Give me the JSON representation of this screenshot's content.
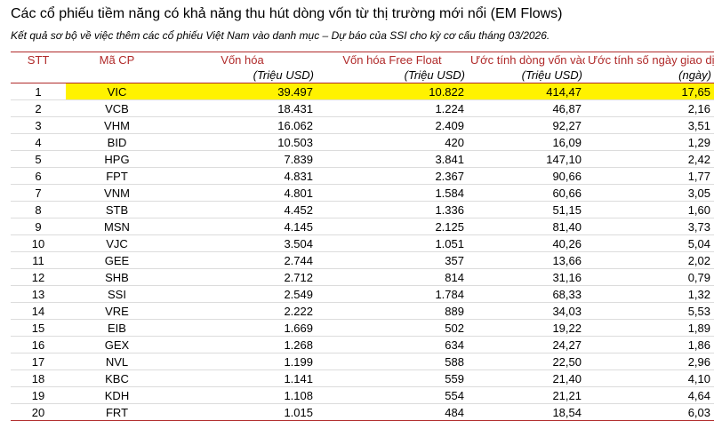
{
  "title": "Các cổ phiếu tiềm năng có khả năng thu hút dòng vốn từ thị trường mới nổi (EM Flows)",
  "subtitle": "Kết quả sơ bộ về việc thêm các cổ phiếu Việt Nam vào danh mục – Dự báo của SSI cho kỳ cơ cấu tháng 03/2026.",
  "highlight_color": "#fff200",
  "header_color": "#b02a2a",
  "columns": [
    {
      "label": "STT",
      "unit": ""
    },
    {
      "label": "Mã CP",
      "unit": ""
    },
    {
      "label": "Vốn hóa",
      "unit": "(Triệu USD)"
    },
    {
      "label": "Vốn hóa Free Float",
      "unit": "(Triệu USD)"
    },
    {
      "label": "Ước tính dòng vốn vào",
      "unit": "(Triệu USD)"
    },
    {
      "label": "Ước tính số ngày giao dịch",
      "unit": "(ngày)"
    }
  ],
  "rows": [
    {
      "stt": "1",
      "ma": "VIC",
      "von_hoa": "39.497",
      "free_float": "10.822",
      "dong_von": "414,47",
      "so_ngay": "17,65",
      "highlight": true
    },
    {
      "stt": "2",
      "ma": "VCB",
      "von_hoa": "18.431",
      "free_float": "1.224",
      "dong_von": "46,87",
      "so_ngay": "2,16"
    },
    {
      "stt": "3",
      "ma": "VHM",
      "von_hoa": "16.062",
      "free_float": "2.409",
      "dong_von": "92,27",
      "so_ngay": "3,51"
    },
    {
      "stt": "4",
      "ma": "BID",
      "von_hoa": "10.503",
      "free_float": "420",
      "dong_von": "16,09",
      "so_ngay": "1,29"
    },
    {
      "stt": "5",
      "ma": "HPG",
      "von_hoa": "7.839",
      "free_float": "3.841",
      "dong_von": "147,10",
      "so_ngay": "2,42"
    },
    {
      "stt": "6",
      "ma": "FPT",
      "von_hoa": "4.831",
      "free_float": "2.367",
      "dong_von": "90,66",
      "so_ngay": "1,77"
    },
    {
      "stt": "7",
      "ma": "VNM",
      "von_hoa": "4.801",
      "free_float": "1.584",
      "dong_von": "60,66",
      "so_ngay": "3,05"
    },
    {
      "stt": "8",
      "ma": "STB",
      "von_hoa": "4.452",
      "free_float": "1.336",
      "dong_von": "51,15",
      "so_ngay": "1,60"
    },
    {
      "stt": "9",
      "ma": "MSN",
      "von_hoa": "4.145",
      "free_float": "2.125",
      "dong_von": "81,40",
      "so_ngay": "3,73"
    },
    {
      "stt": "10",
      "ma": "VJC",
      "von_hoa": "3.504",
      "free_float": "1.051",
      "dong_von": "40,26",
      "so_ngay": "5,04"
    },
    {
      "stt": "11",
      "ma": "GEE",
      "von_hoa": "2.744",
      "free_float": "357",
      "dong_von": "13,66",
      "so_ngay": "2,02"
    },
    {
      "stt": "12",
      "ma": "SHB",
      "von_hoa": "2.712",
      "free_float": "814",
      "dong_von": "31,16",
      "so_ngay": "0,79"
    },
    {
      "stt": "13",
      "ma": "SSI",
      "von_hoa": "2.549",
      "free_float": "1.784",
      "dong_von": "68,33",
      "so_ngay": "1,32"
    },
    {
      "stt": "14",
      "ma": "VRE",
      "von_hoa": "2.222",
      "free_float": "889",
      "dong_von": "34,03",
      "so_ngay": "5,53"
    },
    {
      "stt": "15",
      "ma": "EIB",
      "von_hoa": "1.669",
      "free_float": "502",
      "dong_von": "19,22",
      "so_ngay": "1,89"
    },
    {
      "stt": "16",
      "ma": "GEX",
      "von_hoa": "1.268",
      "free_float": "634",
      "dong_von": "24,27",
      "so_ngay": "1,86"
    },
    {
      "stt": "17",
      "ma": "NVL",
      "von_hoa": "1.199",
      "free_float": "588",
      "dong_von": "22,50",
      "so_ngay": "2,96"
    },
    {
      "stt": "18",
      "ma": "KBC",
      "von_hoa": "1.141",
      "free_float": "559",
      "dong_von": "21,40",
      "so_ngay": "4,10"
    },
    {
      "stt": "19",
      "ma": "KDH",
      "von_hoa": "1.108",
      "free_float": "554",
      "dong_von": "21,21",
      "so_ngay": "4,64"
    },
    {
      "stt": "20",
      "ma": "FRT",
      "von_hoa": "1.015",
      "free_float": "484",
      "dong_von": "18,54",
      "so_ngay": "6,03"
    }
  ]
}
